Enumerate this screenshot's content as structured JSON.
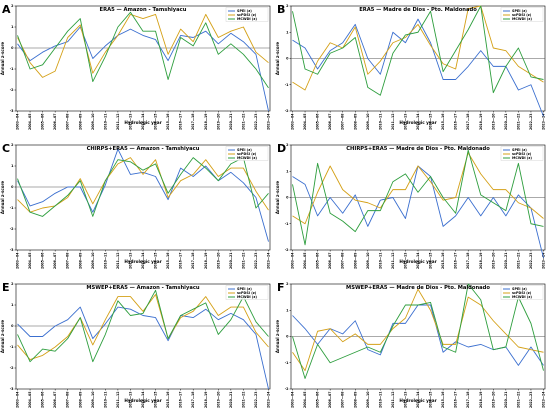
{
  "colors": {
    "spei": "#3b6fcf",
    "scpdsi": "#d4a017",
    "mcwdi": "#2e9e3e",
    "zero": "#555555"
  },
  "x_tick_labels": [
    "2003—04",
    "2004—05",
    "2005—06",
    "2006—07",
    "2007—08",
    "2008—09",
    "2009—10",
    "2010—11",
    "2011—12",
    "2012—13",
    "2013—14",
    "2014—15",
    "2015—16",
    "2016—17",
    "2017—18",
    "2018—19",
    "2019—20",
    "2020—21",
    "2021—22",
    "2022—23",
    "2023—24"
  ],
  "chart_data": [
    {
      "type": "line",
      "panel_label": "A",
      "title": "ERA5 — Amazon - Tamshiyacu",
      "xlabel": "Hydrologic year",
      "ylabel": "Annual z-score",
      "ylim": [
        -3,
        2
      ],
      "yticks": [
        -3,
        -2,
        -1,
        0,
        1,
        2
      ],
      "legend_position": "top-right",
      "series": [
        {
          "name": "SPEI (z)",
          "key": "spei",
          "values": [
            0.2,
            -0.6,
            -0.2,
            0.1,
            0.3,
            1.0,
            -0.5,
            0.1,
            0.6,
            0.9,
            0.6,
            0.4,
            -0.6,
            0.6,
            0.5,
            0.8,
            0.2,
            0.7,
            0.3,
            -0.3,
            -3.0
          ]
        },
        {
          "name": "scPDSI (z)",
          "key": "scpdsi",
          "values": [
            0.5,
            -0.7,
            -1.4,
            -1.1,
            0.5,
            1.1,
            -1.2,
            -0.2,
            0.6,
            1.6,
            1.4,
            1.6,
            -0.3,
            0.9,
            0.3,
            1.6,
            0.5,
            0.8,
            1.0,
            -0.2,
            -0.7
          ]
        },
        {
          "name": "MCWDI (z)",
          "key": "mcwdi",
          "values": [
            0.6,
            -1.0,
            -0.8,
            0.0,
            0.8,
            1.4,
            -1.6,
            -0.4,
            1.0,
            1.7,
            0.8,
            0.8,
            -1.5,
            0.5,
            0.1,
            1.2,
            -0.3,
            0.2,
            -0.3,
            -1.0,
            -1.9
          ]
        }
      ]
    },
    {
      "type": "line",
      "panel_label": "B",
      "title": "ERA5 — Madre de Dios - Pto. Maldonado",
      "xlabel": "Hydrologic year",
      "ylabel": "Annual z-score",
      "ylim": [
        -2,
        2
      ],
      "yticks": [
        -2,
        -1,
        0,
        1,
        2
      ],
      "legend_position": "top-right",
      "series": [
        {
          "name": "SPEI (z)",
          "key": "spei",
          "values": [
            0.7,
            0.4,
            -0.4,
            0.3,
            0.6,
            1.3,
            0.0,
            -0.6,
            1.0,
            0.6,
            1.5,
            0.6,
            -0.8,
            -0.8,
            -0.3,
            0.3,
            -0.3,
            -0.3,
            -1.2,
            -1.0,
            -2.2
          ]
        },
        {
          "name": "scPDSI (z)",
          "key": "scpdsi",
          "values": [
            -0.9,
            -1.2,
            -0.1,
            0.6,
            0.4,
            1.2,
            -0.6,
            -0.1,
            0.6,
            0.8,
            1.3,
            0.5,
            -0.2,
            -0.4,
            1.9,
            2.0,
            0.4,
            0.3,
            -0.3,
            -0.6,
            -0.9
          ]
        },
        {
          "name": "MCWDI (z)",
          "key": "mcwdi",
          "values": [
            1.8,
            -0.4,
            -0.6,
            0.2,
            0.4,
            0.8,
            -1.1,
            -1.4,
            0.2,
            0.9,
            1.0,
            1.8,
            -0.5,
            0.3,
            1.1,
            2.0,
            -1.3,
            -0.3,
            0.4,
            -0.7,
            -0.8
          ]
        }
      ]
    },
    {
      "type": "line",
      "panel_label": "C",
      "title": "CHIRPS+ERA5 — Amazon - Tamshiyacu",
      "xlabel": "Hydrologic year",
      "ylabel": "Annual z-score",
      "ylim": [
        -3,
        2
      ],
      "yticks": [
        -3,
        -2,
        -1,
        0,
        1,
        2
      ],
      "legend_position": "top-right",
      "series": [
        {
          "name": "SPEI (z)",
          "key": "spei",
          "values": [
            0.3,
            -0.9,
            -0.7,
            -0.3,
            0.0,
            0.0,
            -1.2,
            0.1,
            1.8,
            0.6,
            0.7,
            0.5,
            -0.6,
            0.9,
            0.5,
            1.0,
            0.3,
            0.7,
            0.2,
            -0.5,
            -2.6
          ]
        },
        {
          "name": "scPDSI (z)",
          "key": "scpdsi",
          "values": [
            -0.6,
            -1.2,
            -1.0,
            -0.9,
            -0.5,
            0.4,
            -0.8,
            0.3,
            1.1,
            1.4,
            0.6,
            1.3,
            -0.5,
            0.3,
            0.6,
            1.3,
            0.5,
            0.9,
            0.9,
            -0.2,
            -1.1
          ]
        },
        {
          "name": "MCWDI (z)",
          "key": "mcwdi",
          "values": [
            0.4,
            -1.2,
            -1.4,
            -0.9,
            -0.4,
            0.3,
            -1.4,
            0.3,
            1.3,
            1.2,
            0.8,
            1.1,
            -0.3,
            0.6,
            1.4,
            0.9,
            0.3,
            1.1,
            1.4,
            -1.0,
            -0.3
          ]
        }
      ]
    },
    {
      "type": "line",
      "panel_label": "D",
      "title": "CHIRPS+ERA5 — Madre de Dios - Pto. Maldonado",
      "xlabel": "Hydrologic year",
      "ylabel": "Annual z-score",
      "ylim": [
        -2,
        2
      ],
      "yticks": [
        -2,
        -1,
        0,
        1,
        2
      ],
      "legend_position": "top-right",
      "series": [
        {
          "name": "SPEI (z)",
          "key": "spei",
          "values": [
            0.8,
            0.5,
            -0.7,
            0.0,
            -0.6,
            0.1,
            -1.1,
            -0.1,
            0.0,
            -0.8,
            1.2,
            0.8,
            -1.1,
            -0.7,
            0.0,
            -0.7,
            0.0,
            -0.7,
            0.1,
            -0.4,
            -2.3
          ]
        },
        {
          "name": "scPDSI (z)",
          "key": "scpdsi",
          "values": [
            -0.7,
            -1.0,
            0.2,
            1.2,
            0.3,
            -0.1,
            -0.2,
            -0.4,
            0.3,
            0.3,
            1.2,
            0.6,
            -0.1,
            0.0,
            1.7,
            0.9,
            0.3,
            0.3,
            -0.2,
            -0.4,
            -0.8
          ]
        },
        {
          "name": "MCWDI (z)",
          "key": "mcwdi",
          "values": [
            0.5,
            -1.8,
            1.3,
            -0.6,
            -0.9,
            -1.3,
            -0.5,
            -0.5,
            0.6,
            0.9,
            0.2,
            0.8,
            0.0,
            -0.6,
            1.8,
            0.1,
            -0.2,
            -0.5,
            1.3,
            -1.0,
            -1.1
          ]
        }
      ]
    },
    {
      "type": "line",
      "panel_label": "E",
      "title": "MSWEP+ERA5 — Amazon - Tamshiyacu",
      "xlabel": "Hydrologic year",
      "ylabel": "Annual z-score",
      "ylim": [
        -3,
        2
      ],
      "yticks": [
        -3,
        -2,
        -1,
        0,
        1,
        2
      ],
      "legend_position": "top-right",
      "series": [
        {
          "name": "SPEI (z)",
          "key": "spei",
          "values": [
            0.1,
            -0.5,
            -0.5,
            0.0,
            0.3,
            0.9,
            -0.6,
            0.1,
            0.9,
            0.8,
            0.5,
            0.4,
            -0.7,
            0.5,
            0.4,
            0.8,
            0.3,
            0.6,
            0.3,
            -0.4,
            -3.0
          ]
        },
        {
          "name": "scPDSI (z)",
          "key": "scpdsi",
          "values": [
            -0.9,
            -1.6,
            -1.4,
            -1.0,
            -0.5,
            0.4,
            -0.9,
            0.3,
            1.4,
            1.4,
            0.7,
            1.5,
            -0.6,
            0.4,
            0.7,
            1.4,
            0.5,
            0.9,
            0.9,
            -0.3,
            -1.0
          ]
        },
        {
          "name": "MCWDI (z)",
          "key": "mcwdi",
          "values": [
            -0.4,
            -1.7,
            -1.1,
            -1.2,
            -0.6,
            0.4,
            -1.7,
            -0.4,
            1.2,
            0.5,
            0.6,
            1.7,
            -0.6,
            0.5,
            0.8,
            1.1,
            -0.4,
            0.3,
            1.4,
            0.2,
            -0.5
          ]
        }
      ]
    },
    {
      "type": "line",
      "panel_label": "F",
      "title": "MSWEP+ERA5 — Madre de Dios - Pto. Maldonado",
      "xlabel": "Hydrologic year",
      "ylabel": "Annual z-score",
      "ylim": [
        -2,
        2
      ],
      "yticks": [
        -2,
        -1,
        0,
        1,
        2
      ],
      "legend_position": "top-right",
      "series": [
        {
          "name": "SPEI (z)",
          "key": "spei",
          "values": [
            0.8,
            0.3,
            -0.3,
            0.3,
            0.1,
            0.6,
            -0.5,
            -0.7,
            0.5,
            0.5,
            1.2,
            1.2,
            -0.6,
            -0.2,
            -0.4,
            -0.3,
            -0.5,
            -0.4,
            -1.1,
            -0.4,
            -1.1
          ]
        },
        {
          "name": "scPDSI (z)",
          "key": "scpdsi",
          "values": [
            -0.6,
            -1.3,
            0.2,
            0.3,
            -0.2,
            0.1,
            -0.3,
            -0.3,
            0.3,
            0.7,
            1.8,
            1.0,
            -0.3,
            -0.3,
            1.5,
            1.2,
            0.6,
            0.1,
            -0.4,
            -0.5,
            -0.6
          ]
        },
        {
          "name": "MCWDI (z)",
          "key": "mcwdi",
          "values": [
            0.0,
            -1.6,
            -0.3,
            -1.0,
            -0.8,
            -0.6,
            -0.4,
            -0.6,
            0.4,
            1.2,
            1.2,
            1.3,
            -0.4,
            -0.6,
            2.0,
            1.4,
            -0.5,
            -0.4,
            1.5,
            0.5,
            -1.3
          ]
        }
      ]
    }
  ]
}
